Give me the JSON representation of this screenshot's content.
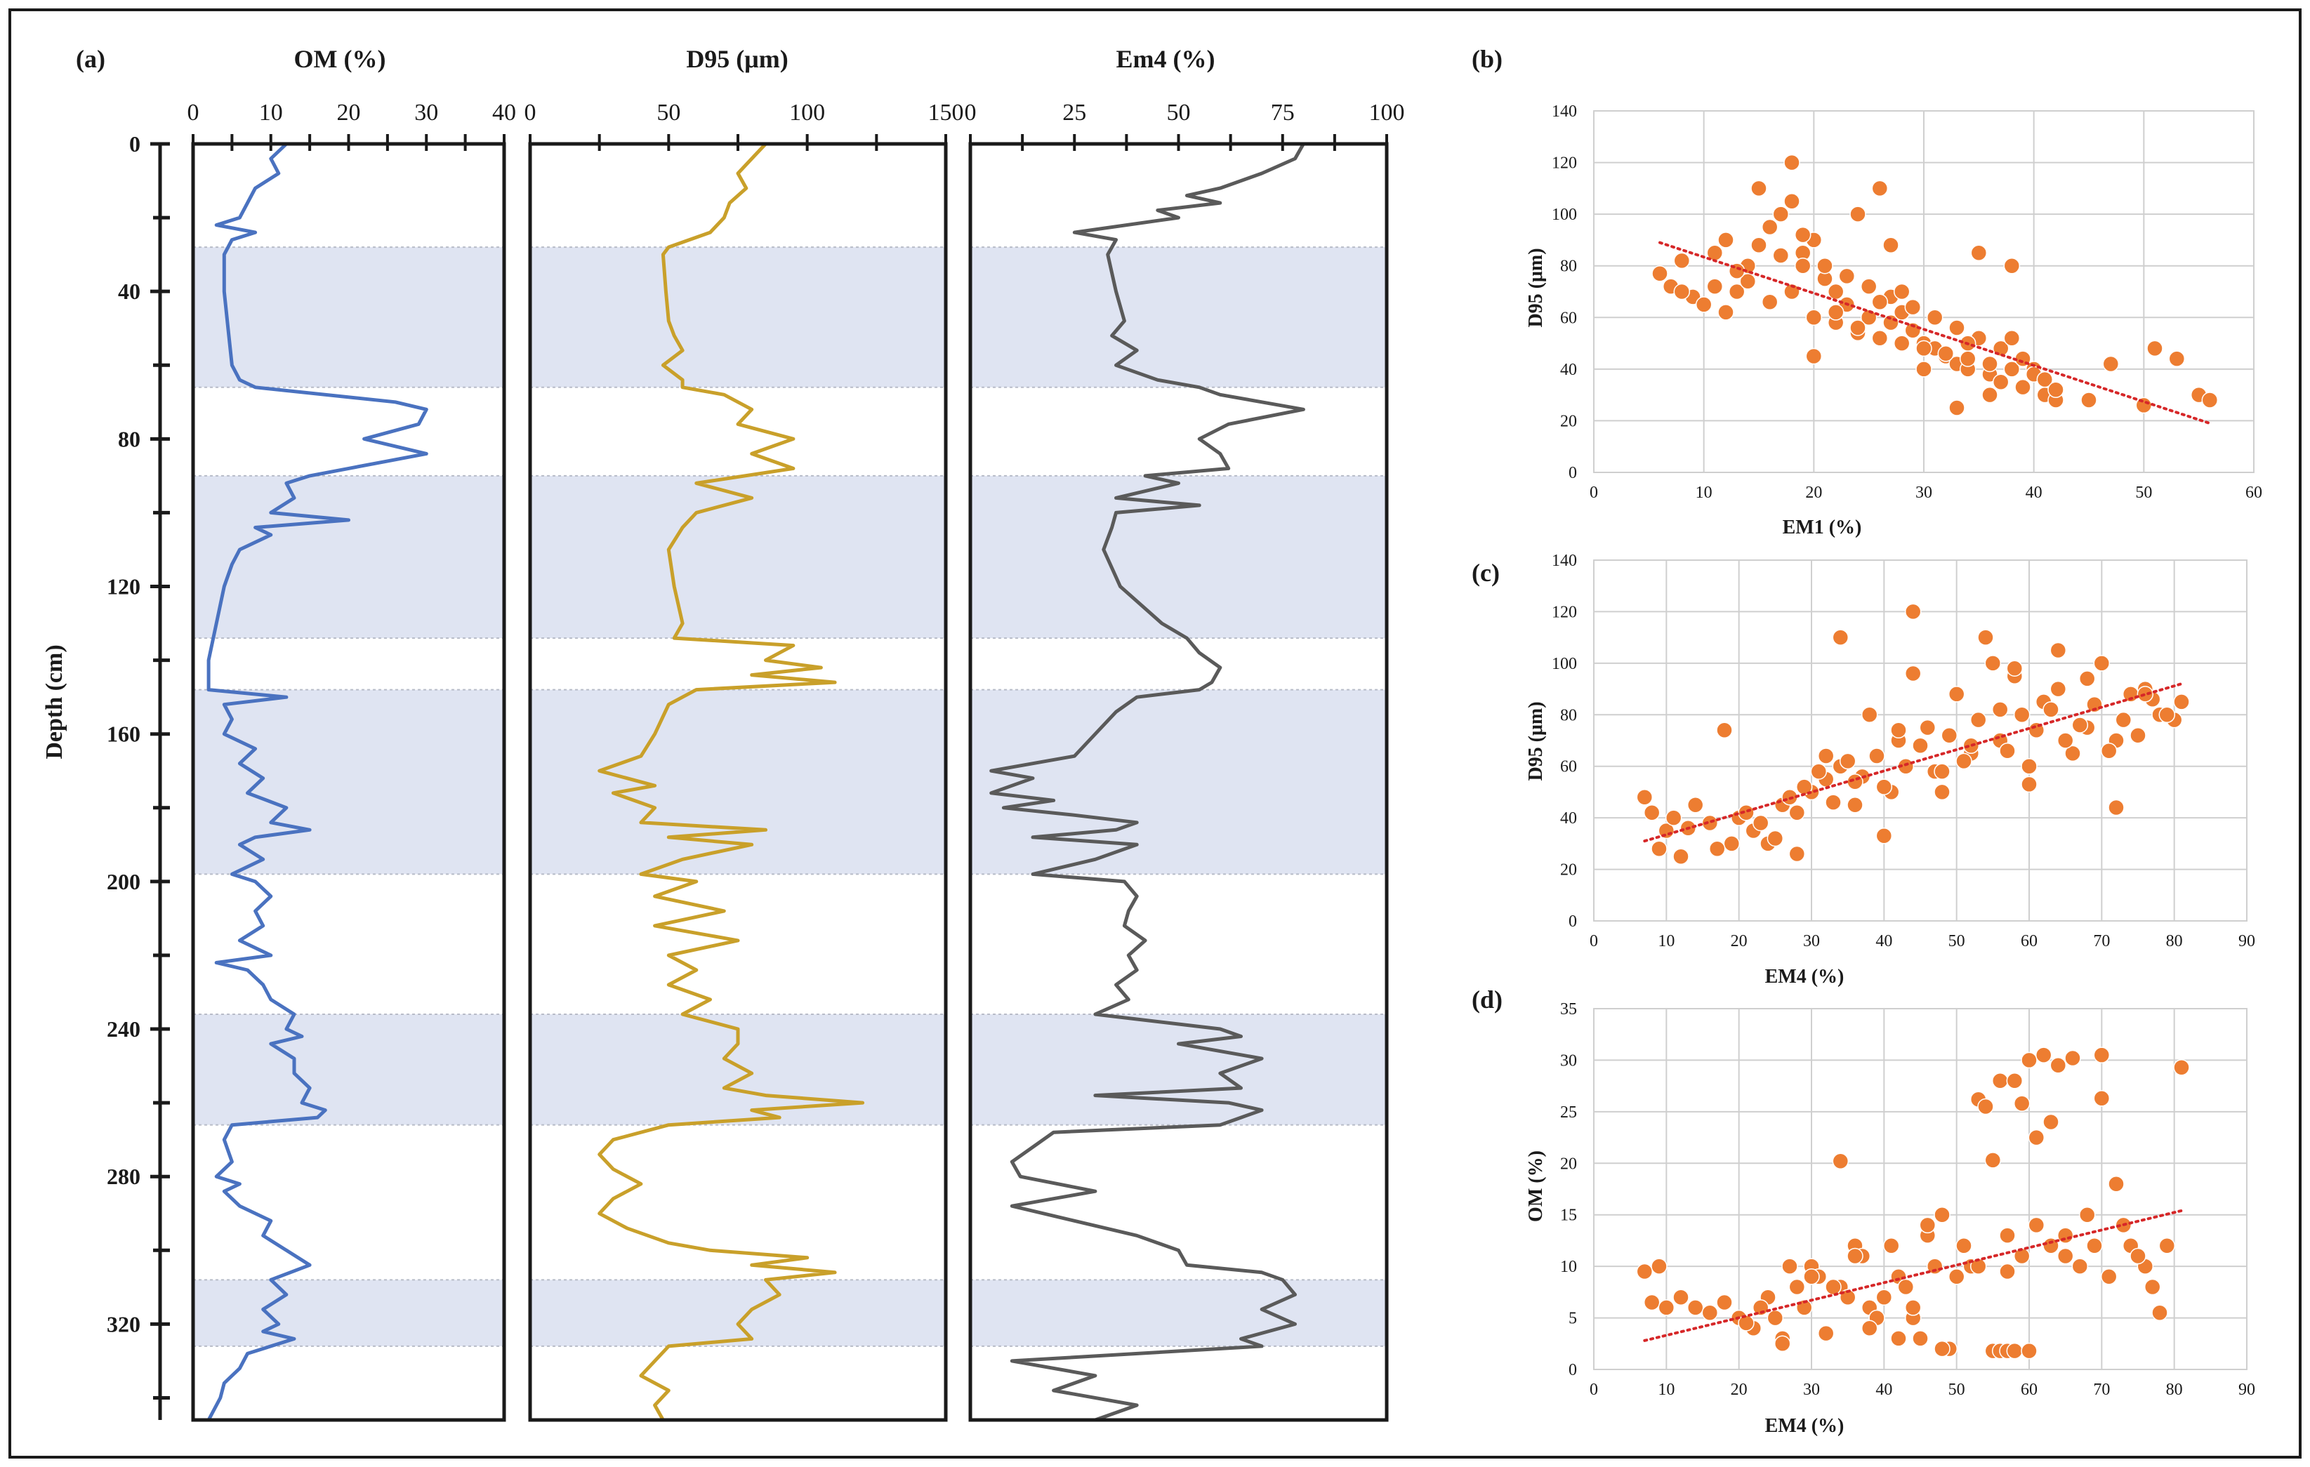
{
  "figure": {
    "panel_labels": [
      "(a)",
      "(b)",
      "(c)",
      "(d)"
    ],
    "colors": {
      "om_line": "#4a72c0",
      "d95_line": "#c9a02a",
      "em4_line": "#5a5a5a",
      "band_fill": "#dfe4f2",
      "scatter_point": "#ed7d31",
      "trend_line": "#d62728",
      "frame": "#1a1a1a"
    }
  },
  "chart_data": [
    {
      "id": "om",
      "type": "line",
      "title": "OM (%)",
      "xlabel": "OM (%)",
      "ylabel": "Depth (cm)",
      "xlim": [
        0,
        40
      ],
      "ylim": [
        0,
        346
      ],
      "y_inverted": true,
      "xticks": [
        "0",
        "10",
        "20",
        "30",
        "40"
      ],
      "yticks": [
        "0",
        "40",
        "80",
        "120",
        "160",
        "200",
        "240",
        "280",
        "320"
      ],
      "shaded_depth_intervals": [
        [
          28,
          66
        ],
        [
          90,
          134
        ],
        [
          148,
          198
        ],
        [
          236,
          266
        ],
        [
          308,
          326
        ]
      ],
      "depth": [
        0,
        4,
        8,
        12,
        16,
        20,
        22,
        24,
        26,
        30,
        40,
        50,
        60,
        64,
        66,
        70,
        72,
        76,
        80,
        84,
        86,
        88,
        90,
        92,
        96,
        100,
        102,
        104,
        106,
        110,
        114,
        120,
        130,
        140,
        148,
        150,
        152,
        156,
        160,
        164,
        168,
        172,
        176,
        180,
        184,
        186,
        188,
        190,
        194,
        198,
        200,
        204,
        208,
        212,
        216,
        220,
        222,
        224,
        228,
        232,
        236,
        240,
        242,
        244,
        248,
        252,
        256,
        260,
        262,
        264,
        266,
        270,
        276,
        280,
        282,
        284,
        288,
        292,
        296,
        300,
        304,
        308,
        312,
        316,
        320,
        322,
        324,
        328,
        332,
        336,
        340,
        346
      ],
      "values": [
        12,
        10,
        11,
        8,
        7,
        6,
        3,
        8,
        5,
        4,
        4,
        4.5,
        5,
        6,
        8,
        26,
        30,
        29,
        22,
        30,
        25,
        20,
        15,
        12,
        13,
        10,
        20,
        8,
        10,
        6,
        5,
        4,
        3,
        2,
        2,
        12,
        4,
        5,
        4,
        8,
        6,
        9,
        7,
        12,
        10,
        15,
        8,
        6,
        9,
        5,
        8,
        10,
        8,
        9,
        6,
        10,
        3,
        7,
        9,
        10,
        13,
        12,
        14,
        10,
        13,
        13,
        15,
        14,
        17,
        16,
        5,
        4,
        5,
        3,
        6,
        4,
        6,
        10,
        9,
        12,
        15,
        10,
        12,
        9,
        11,
        9,
        13,
        7,
        6,
        4,
        3.5,
        2
      ]
    },
    {
      "id": "d95",
      "type": "line",
      "title": "D95 (μm)",
      "xlabel": "D95 (μm)",
      "ylabel": "Depth (cm)",
      "xlim": [
        0,
        150
      ],
      "ylim": [
        0,
        346
      ],
      "y_inverted": true,
      "xticks": [
        "0",
        "50",
        "100",
        "150"
      ],
      "shaded_depth_intervals": [
        [
          28,
          66
        ],
        [
          90,
          134
        ],
        [
          148,
          198
        ],
        [
          236,
          266
        ],
        [
          308,
          326
        ]
      ],
      "depth": [
        0,
        4,
        8,
        12,
        16,
        20,
        24,
        28,
        30,
        40,
        48,
        52,
        56,
        60,
        64,
        66,
        68,
        72,
        76,
        80,
        84,
        88,
        92,
        96,
        100,
        104,
        110,
        120,
        130,
        134,
        136,
        140,
        142,
        144,
        146,
        148,
        152,
        160,
        166,
        170,
        174,
        176,
        180,
        184,
        186,
        188,
        190,
        194,
        198,
        200,
        204,
        208,
        212,
        216,
        220,
        224,
        228,
        232,
        236,
        240,
        244,
        248,
        252,
        256,
        258,
        260,
        262,
        264,
        266,
        270,
        274,
        278,
        282,
        286,
        290,
        294,
        298,
        300,
        302,
        304,
        306,
        308,
        312,
        316,
        320,
        324,
        326,
        330,
        334,
        338,
        342,
        346
      ],
      "values": [
        85,
        80,
        75,
        78,
        72,
        70,
        65,
        50,
        48,
        49,
        50,
        52,
        55,
        48,
        55,
        55,
        70,
        80,
        75,
        95,
        80,
        95,
        60,
        80,
        60,
        55,
        50,
        52,
        55,
        52,
        95,
        85,
        105,
        80,
        110,
        60,
        50,
        45,
        40,
        25,
        45,
        30,
        45,
        40,
        85,
        50,
        80,
        55,
        40,
        60,
        45,
        70,
        45,
        75,
        50,
        60,
        50,
        65,
        55,
        75,
        75,
        70,
        80,
        70,
        85,
        120,
        80,
        90,
        50,
        30,
        25,
        30,
        40,
        30,
        25,
        35,
        50,
        65,
        100,
        80,
        110,
        85,
        90,
        80,
        75,
        80,
        50,
        45,
        40,
        50,
        45,
        48
      ]
    },
    {
      "id": "em4",
      "type": "line",
      "title": "Em4 (%)",
      "xlabel": "Em4 (%)",
      "ylabel": "Depth (cm)",
      "xlim": [
        0,
        100
      ],
      "ylim": [
        0,
        346
      ],
      "y_inverted": true,
      "xticks": [
        "0",
        "25",
        "50",
        "75",
        "100"
      ],
      "shaded_depth_intervals": [
        [
          28,
          66
        ],
        [
          90,
          134
        ],
        [
          148,
          198
        ],
        [
          236,
          266
        ],
        [
          308,
          326
        ]
      ],
      "depth": [
        0,
        4,
        8,
        12,
        14,
        16,
        18,
        20,
        24,
        26,
        30,
        40,
        48,
        52,
        56,
        60,
        64,
        66,
        68,
        70,
        72,
        76,
        80,
        84,
        88,
        90,
        92,
        96,
        98,
        100,
        104,
        110,
        120,
        130,
        134,
        138,
        142,
        146,
        148,
        150,
        154,
        160,
        166,
        170,
        172,
        176,
        178,
        180,
        182,
        184,
        186,
        188,
        190,
        194,
        198,
        200,
        204,
        208,
        212,
        216,
        220,
        224,
        228,
        232,
        236,
        240,
        242,
        244,
        248,
        252,
        256,
        258,
        260,
        262,
        264,
        266,
        268,
        272,
        276,
        280,
        284,
        288,
        292,
        296,
        300,
        304,
        306,
        308,
        312,
        316,
        320,
        324,
        326,
        330,
        334,
        338,
        342,
        346
      ],
      "values": [
        80,
        78,
        70,
        60,
        52,
        60,
        45,
        50,
        25,
        35,
        33,
        35,
        37,
        34,
        40,
        35,
        45,
        55,
        60,
        70,
        80,
        62,
        55,
        60,
        62,
        42,
        50,
        35,
        55,
        35,
        34,
        32,
        36,
        46,
        52,
        55,
        60,
        58,
        55,
        40,
        35,
        30,
        25,
        5,
        15,
        5,
        20,
        8,
        25,
        40,
        35,
        15,
        40,
        30,
        15,
        37,
        40,
        38,
        37,
        42,
        38,
        40,
        35,
        38,
        30,
        60,
        65,
        50,
        70,
        60,
        65,
        30,
        62,
        70,
        65,
        60,
        20,
        15,
        10,
        12,
        30,
        10,
        25,
        40,
        50,
        52,
        70,
        75,
        78,
        70,
        78,
        65,
        70,
        10,
        30,
        20,
        40,
        30
      ]
    },
    {
      "id": "scatter_b",
      "type": "scatter",
      "panel": "(b)",
      "xlabel": "EM1 (%)",
      "ylabel": "D95 (μm)",
      "xlim": [
        0,
        60
      ],
      "ylim": [
        0,
        140
      ],
      "xticks": [
        "0",
        "10",
        "20",
        "30",
        "40",
        "50",
        "60"
      ],
      "yticks": [
        "0",
        "20",
        "40",
        "60",
        "80",
        "100",
        "120",
        "140"
      ],
      "x": [
        6,
        7,
        8,
        9,
        10,
        11,
        12,
        13,
        14,
        15,
        16,
        17,
        18,
        18,
        19,
        20,
        21,
        22,
        23,
        24,
        25,
        26,
        27,
        28,
        29,
        30,
        31,
        32,
        33,
        34,
        35,
        36,
        37,
        38,
        39,
        40,
        41,
        42,
        45,
        47,
        50,
        51,
        53,
        55,
        56,
        12,
        14,
        16,
        18,
        20,
        22,
        24,
        26,
        28,
        30,
        32,
        34,
        36,
        38,
        40,
        15,
        17,
        19,
        21,
        23,
        25,
        27,
        29,
        31,
        33,
        35,
        37,
        39,
        41,
        13,
        20,
        26,
        33,
        42,
        11,
        24,
        30,
        36,
        8,
        22,
        28,
        34,
        19,
        27,
        38
      ],
      "y": [
        77,
        72,
        82,
        68,
        65,
        85,
        90,
        70,
        80,
        110,
        95,
        100,
        120,
        105,
        85,
        90,
        75,
        70,
        65,
        100,
        60,
        110,
        58,
        62,
        55,
        50,
        48,
        45,
        42,
        40,
        85,
        38,
        35,
        80,
        33,
        40,
        30,
        28,
        28,
        42,
        26,
        48,
        44,
        30,
        28,
        62,
        74,
        66,
        70,
        60,
        58,
        54,
        52,
        50,
        48,
        46,
        44,
        42,
        40,
        38,
        88,
        84,
        92,
        80,
        76,
        72,
        68,
        64,
        60,
        56,
        52,
        48,
        44,
        36,
        78,
        45,
        66,
        25,
        32,
        72,
        56,
        40,
        30,
        70,
        62,
        70,
        50,
        80,
        88,
        52
      ],
      "trend": [
        [
          6,
          89
        ],
        [
          56,
          19
        ]
      ]
    },
    {
      "id": "scatter_c",
      "type": "scatter",
      "panel": "(c)",
      "xlabel": "EM4 (%)",
      "ylabel": "D95 (μm)",
      "xlim": [
        0,
        90
      ],
      "ylim": [
        0,
        140
      ],
      "xticks": [
        "0",
        "10",
        "20",
        "30",
        "40",
        "50",
        "60",
        "70",
        "80",
        "90"
      ],
      "yticks": [
        "0",
        "20",
        "40",
        "60",
        "80",
        "100",
        "120",
        "140"
      ],
      "x": [
        7,
        8,
        9,
        10,
        11,
        12,
        14,
        16,
        18,
        19,
        20,
        22,
        24,
        26,
        28,
        30,
        32,
        34,
        34,
        36,
        38,
        40,
        42,
        43,
        44,
        46,
        48,
        50,
        52,
        54,
        55,
        56,
        58,
        60,
        62,
        64,
        66,
        68,
        70,
        72,
        74,
        76,
        78,
        80,
        81,
        25,
        27,
        29,
        31,
        33,
        35,
        37,
        39,
        41,
        45,
        47,
        49,
        51,
        53,
        57,
        59,
        61,
        63,
        65,
        67,
        69,
        71,
        73,
        75,
        77,
        79,
        13,
        17,
        21,
        23,
        28,
        32,
        36,
        40,
        44,
        48,
        52,
        56,
        60,
        64,
        68,
        72,
        76,
        42,
        58
      ],
      "y": [
        48,
        42,
        28,
        35,
        40,
        25,
        45,
        38,
        74,
        30,
        40,
        35,
        30,
        45,
        42,
        50,
        55,
        110,
        60,
        45,
        80,
        33,
        70,
        60,
        120,
        75,
        50,
        88,
        65,
        110,
        100,
        70,
        95,
        53,
        85,
        105,
        65,
        75,
        100,
        70,
        88,
        90,
        80,
        78,
        85,
        32,
        48,
        52,
        58,
        46,
        62,
        56,
        64,
        50,
        68,
        58,
        72,
        62,
        78,
        66,
        80,
        74,
        82,
        70,
        76,
        84,
        66,
        78,
        72,
        86,
        80,
        36,
        28,
        42,
        38,
        26,
        64,
        54,
        52,
        96,
        58,
        68,
        82,
        60,
        90,
        94,
        44,
        88,
        74,
        98
      ],
      "trend": [
        [
          7,
          31
        ],
        [
          81,
          92
        ]
      ]
    },
    {
      "id": "scatter_d",
      "type": "scatter",
      "panel": "(d)",
      "xlabel": "EM4 (%)",
      "ylabel": "OM (%)",
      "xlim": [
        0,
        90
      ],
      "ylim": [
        0,
        35
      ],
      "xticks": [
        "0",
        "10",
        "20",
        "30",
        "40",
        "50",
        "60",
        "70",
        "80",
        "90"
      ],
      "yticks": [
        "0",
        "5",
        "10",
        "15",
        "20",
        "25",
        "30",
        "35"
      ],
      "x": [
        7,
        8,
        9,
        10,
        12,
        14,
        16,
        18,
        20,
        22,
        24,
        26,
        28,
        30,
        32,
        34,
        34,
        36,
        38,
        40,
        42,
        44,
        46,
        48,
        50,
        52,
        53,
        54,
        55,
        56,
        57,
        58,
        59,
        60,
        61,
        62,
        63,
        64,
        65,
        66,
        68,
        70,
        70,
        72,
        74,
        76,
        78,
        79,
        81,
        55,
        56,
        57,
        58,
        60,
        25,
        27,
        29,
        31,
        33,
        35,
        37,
        39,
        41,
        43,
        45,
        47,
        49,
        51,
        53,
        57,
        59,
        61,
        63,
        65,
        67,
        69,
        71,
        73,
        75,
        77,
        21,
        23,
        26,
        30,
        38,
        44,
        48,
        36,
        42,
        46
      ],
      "y": [
        9.5,
        6.5,
        10,
        6,
        7,
        6,
        5.5,
        6.5,
        5,
        4,
        7,
        3,
        8,
        10,
        3.5,
        20.2,
        8,
        12,
        6,
        7,
        9,
        5,
        13,
        15,
        9,
        10,
        26.2,
        25.5,
        20.3,
        28,
        9.5,
        28,
        25.8,
        30,
        22.5,
        30.5,
        24,
        29.5,
        11,
        30.2,
        15,
        26.3,
        30.5,
        18,
        12,
        10,
        5.5,
        12,
        29.3,
        1.8,
        1.8,
        1.8,
        1.8,
        1.8,
        5,
        10,
        6,
        9,
        8,
        7,
        11,
        5,
        12,
        8,
        3,
        10,
        2,
        12,
        10,
        13,
        11,
        14,
        12,
        13,
        10,
        12,
        9,
        14,
        11,
        8,
        4.5,
        6,
        2.5,
        9,
        4,
        6,
        2,
        11,
        3,
        14
      ],
      "trend": [
        [
          7,
          2.8
        ],
        [
          81,
          15.4
        ]
      ]
    }
  ]
}
